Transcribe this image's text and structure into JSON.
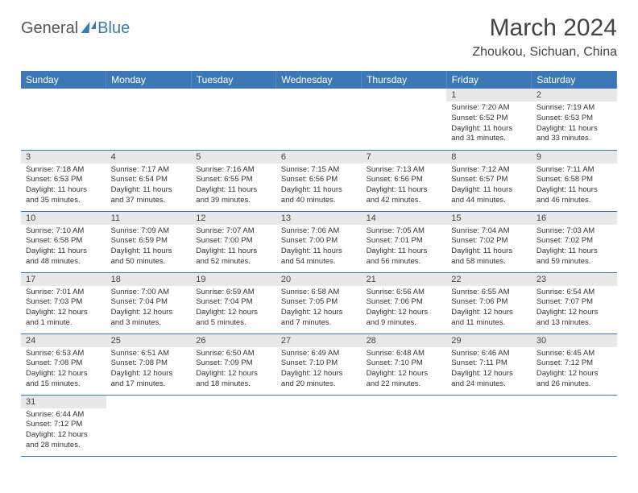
{
  "brand": {
    "part1": "General",
    "part2": "Blue"
  },
  "title": "March 2024",
  "location": "Zhoukou, Sichuan, China",
  "colors": {
    "accent": "#3b78b5",
    "header_bg": "#3b78b5",
    "daybar_bg": "#e8e8e8",
    "text": "#333333"
  },
  "weekdays": [
    "Sunday",
    "Monday",
    "Tuesday",
    "Wednesday",
    "Thursday",
    "Friday",
    "Saturday"
  ],
  "weeks": [
    [
      null,
      null,
      null,
      null,
      null,
      {
        "n": "1",
        "sr": "Sunrise: 7:20 AM",
        "ss": "Sunset: 6:52 PM",
        "dl": "Daylight: 11 hours and 31 minutes."
      },
      {
        "n": "2",
        "sr": "Sunrise: 7:19 AM",
        "ss": "Sunset: 6:53 PM",
        "dl": "Daylight: 11 hours and 33 minutes."
      }
    ],
    [
      {
        "n": "3",
        "sr": "Sunrise: 7:18 AM",
        "ss": "Sunset: 6:53 PM",
        "dl": "Daylight: 11 hours and 35 minutes."
      },
      {
        "n": "4",
        "sr": "Sunrise: 7:17 AM",
        "ss": "Sunset: 6:54 PM",
        "dl": "Daylight: 11 hours and 37 minutes."
      },
      {
        "n": "5",
        "sr": "Sunrise: 7:16 AM",
        "ss": "Sunset: 6:55 PM",
        "dl": "Daylight: 11 hours and 39 minutes."
      },
      {
        "n": "6",
        "sr": "Sunrise: 7:15 AM",
        "ss": "Sunset: 6:56 PM",
        "dl": "Daylight: 11 hours and 40 minutes."
      },
      {
        "n": "7",
        "sr": "Sunrise: 7:13 AM",
        "ss": "Sunset: 6:56 PM",
        "dl": "Daylight: 11 hours and 42 minutes."
      },
      {
        "n": "8",
        "sr": "Sunrise: 7:12 AM",
        "ss": "Sunset: 6:57 PM",
        "dl": "Daylight: 11 hours and 44 minutes."
      },
      {
        "n": "9",
        "sr": "Sunrise: 7:11 AM",
        "ss": "Sunset: 6:58 PM",
        "dl": "Daylight: 11 hours and 46 minutes."
      }
    ],
    [
      {
        "n": "10",
        "sr": "Sunrise: 7:10 AM",
        "ss": "Sunset: 6:58 PM",
        "dl": "Daylight: 11 hours and 48 minutes."
      },
      {
        "n": "11",
        "sr": "Sunrise: 7:09 AM",
        "ss": "Sunset: 6:59 PM",
        "dl": "Daylight: 11 hours and 50 minutes."
      },
      {
        "n": "12",
        "sr": "Sunrise: 7:07 AM",
        "ss": "Sunset: 7:00 PM",
        "dl": "Daylight: 11 hours and 52 minutes."
      },
      {
        "n": "13",
        "sr": "Sunrise: 7:06 AM",
        "ss": "Sunset: 7:00 PM",
        "dl": "Daylight: 11 hours and 54 minutes."
      },
      {
        "n": "14",
        "sr": "Sunrise: 7:05 AM",
        "ss": "Sunset: 7:01 PM",
        "dl": "Daylight: 11 hours and 56 minutes."
      },
      {
        "n": "15",
        "sr": "Sunrise: 7:04 AM",
        "ss": "Sunset: 7:02 PM",
        "dl": "Daylight: 11 hours and 58 minutes."
      },
      {
        "n": "16",
        "sr": "Sunrise: 7:03 AM",
        "ss": "Sunset: 7:02 PM",
        "dl": "Daylight: 11 hours and 59 minutes."
      }
    ],
    [
      {
        "n": "17",
        "sr": "Sunrise: 7:01 AM",
        "ss": "Sunset: 7:03 PM",
        "dl": "Daylight: 12 hours and 1 minute."
      },
      {
        "n": "18",
        "sr": "Sunrise: 7:00 AM",
        "ss": "Sunset: 7:04 PM",
        "dl": "Daylight: 12 hours and 3 minutes."
      },
      {
        "n": "19",
        "sr": "Sunrise: 6:59 AM",
        "ss": "Sunset: 7:04 PM",
        "dl": "Daylight: 12 hours and 5 minutes."
      },
      {
        "n": "20",
        "sr": "Sunrise: 6:58 AM",
        "ss": "Sunset: 7:05 PM",
        "dl": "Daylight: 12 hours and 7 minutes."
      },
      {
        "n": "21",
        "sr": "Sunrise: 6:56 AM",
        "ss": "Sunset: 7:06 PM",
        "dl": "Daylight: 12 hours and 9 minutes."
      },
      {
        "n": "22",
        "sr": "Sunrise: 6:55 AM",
        "ss": "Sunset: 7:06 PM",
        "dl": "Daylight: 12 hours and 11 minutes."
      },
      {
        "n": "23",
        "sr": "Sunrise: 6:54 AM",
        "ss": "Sunset: 7:07 PM",
        "dl": "Daylight: 12 hours and 13 minutes."
      }
    ],
    [
      {
        "n": "24",
        "sr": "Sunrise: 6:53 AM",
        "ss": "Sunset: 7:08 PM",
        "dl": "Daylight: 12 hours and 15 minutes."
      },
      {
        "n": "25",
        "sr": "Sunrise: 6:51 AM",
        "ss": "Sunset: 7:08 PM",
        "dl": "Daylight: 12 hours and 17 minutes."
      },
      {
        "n": "26",
        "sr": "Sunrise: 6:50 AM",
        "ss": "Sunset: 7:09 PM",
        "dl": "Daylight: 12 hours and 18 minutes."
      },
      {
        "n": "27",
        "sr": "Sunrise: 6:49 AM",
        "ss": "Sunset: 7:10 PM",
        "dl": "Daylight: 12 hours and 20 minutes."
      },
      {
        "n": "28",
        "sr": "Sunrise: 6:48 AM",
        "ss": "Sunset: 7:10 PM",
        "dl": "Daylight: 12 hours and 22 minutes."
      },
      {
        "n": "29",
        "sr": "Sunrise: 6:46 AM",
        "ss": "Sunset: 7:11 PM",
        "dl": "Daylight: 12 hours and 24 minutes."
      },
      {
        "n": "30",
        "sr": "Sunrise: 6:45 AM",
        "ss": "Sunset: 7:12 PM",
        "dl": "Daylight: 12 hours and 26 minutes."
      }
    ],
    [
      {
        "n": "31",
        "sr": "Sunrise: 6:44 AM",
        "ss": "Sunset: 7:12 PM",
        "dl": "Daylight: 12 hours and 28 minutes."
      },
      null,
      null,
      null,
      null,
      null,
      null
    ]
  ]
}
